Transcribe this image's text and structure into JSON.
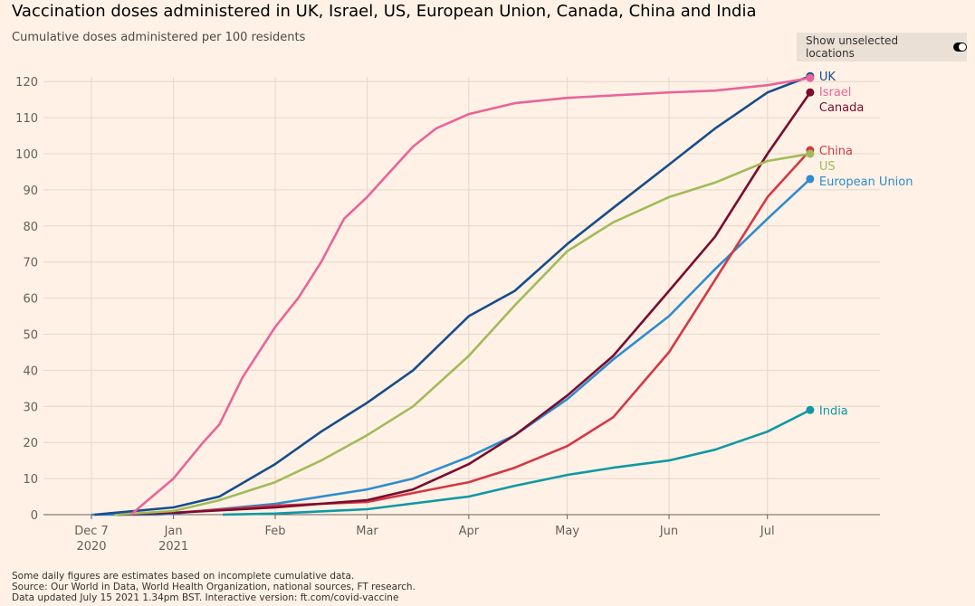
{
  "title": "Vaccination doses administered in UK, Israel, US, European Union, Canada, China and India",
  "subtitle": "Cumulative doses administered per 100 residents",
  "toggle": {
    "label": "Show unselected locations",
    "state": "off"
  },
  "footer": [
    "Some daily figures are estimates based on incomplete cumulative data.",
    "Source: Our World in Data, World Health Organization, national sources, FT research.",
    "Data updated July 15 2021 1.34pm BST. Interactive version: ft.com/covid-vaccine"
  ],
  "chart_data": {
    "type": "line",
    "title": "Vaccination doses administered in UK, Israel, US, European Union, Canada, China and India",
    "ylabel": "Cumulative doses administered per 100 residents",
    "ylim": [
      0,
      120
    ],
    "yticks": [
      0,
      10,
      20,
      30,
      40,
      50,
      60,
      70,
      80,
      90,
      100,
      110,
      120
    ],
    "xlim": [
      "2020-12-07",
      "2021-07-31"
    ],
    "xticks": [
      {
        "date": "2020-12-07",
        "label": "Dec 7",
        "label2": "2020"
      },
      {
        "date": "2021-01-01",
        "label": "Jan",
        "label2": "2021"
      },
      {
        "date": "2021-02-01",
        "label": "Feb"
      },
      {
        "date": "2021-03-01",
        "label": "Mar"
      },
      {
        "date": "2021-04-01",
        "label": "Apr"
      },
      {
        "date": "2021-05-01",
        "label": "May"
      },
      {
        "date": "2021-06-01",
        "label": "Jun"
      },
      {
        "date": "2021-07-01",
        "label": "Jul"
      }
    ],
    "grid": true,
    "legend": "end-of-line labels",
    "series": [
      {
        "name": "India",
        "color": "#0f99a3",
        "points": [
          [
            "2021-01-16",
            0
          ],
          [
            "2021-02-01",
            0.3
          ],
          [
            "2021-03-01",
            1.5
          ],
          [
            "2021-04-01",
            5
          ],
          [
            "2021-04-15",
            8
          ],
          [
            "2021-05-01",
            11
          ],
          [
            "2021-05-15",
            13
          ],
          [
            "2021-06-01",
            15
          ],
          [
            "2021-06-15",
            18
          ],
          [
            "2021-07-01",
            23
          ],
          [
            "2021-07-14",
            29
          ]
        ]
      },
      {
        "name": "European Union",
        "color": "#2e8ccf",
        "points": [
          [
            "2020-12-07",
            0
          ],
          [
            "2020-12-27",
            0
          ],
          [
            "2021-01-01",
            0.3
          ],
          [
            "2021-02-01",
            3
          ],
          [
            "2021-03-01",
            7
          ],
          [
            "2021-03-15",
            10
          ],
          [
            "2021-04-01",
            16
          ],
          [
            "2021-04-15",
            22
          ],
          [
            "2021-05-01",
            32
          ],
          [
            "2021-05-15",
            43
          ],
          [
            "2021-06-01",
            55
          ],
          [
            "2021-06-15",
            68
          ],
          [
            "2021-07-01",
            82
          ],
          [
            "2021-07-14",
            93
          ]
        ]
      },
      {
        "name": "China",
        "color": "#d43846",
        "points": [
          [
            "2020-12-15",
            0
          ],
          [
            "2021-01-01",
            0.5
          ],
          [
            "2021-02-01",
            2.5
          ],
          [
            "2021-03-01",
            3.5
          ],
          [
            "2021-04-01",
            9
          ],
          [
            "2021-04-15",
            13
          ],
          [
            "2021-05-01",
            19
          ],
          [
            "2021-05-15",
            27
          ],
          [
            "2021-06-01",
            45
          ],
          [
            "2021-06-15",
            65
          ],
          [
            "2021-07-01",
            88
          ],
          [
            "2021-07-14",
            101
          ]
        ]
      },
      {
        "name": "Canada",
        "color": "#7a0c2e",
        "points": [
          [
            "2020-12-15",
            0
          ],
          [
            "2021-01-01",
            0.5
          ],
          [
            "2021-02-01",
            2
          ],
          [
            "2021-03-01",
            4
          ],
          [
            "2021-03-15",
            7
          ],
          [
            "2021-04-01",
            14
          ],
          [
            "2021-04-15",
            22
          ],
          [
            "2021-05-01",
            33
          ],
          [
            "2021-05-15",
            44
          ],
          [
            "2021-06-01",
            62
          ],
          [
            "2021-06-15",
            77
          ],
          [
            "2021-07-01",
            100
          ],
          [
            "2021-07-14",
            117
          ]
        ]
      },
      {
        "name": "US",
        "color": "#a1bb5a",
        "points": [
          [
            "2020-12-14",
            0
          ],
          [
            "2021-01-01",
            1
          ],
          [
            "2021-01-15",
            4
          ],
          [
            "2021-02-01",
            9
          ],
          [
            "2021-02-15",
            15
          ],
          [
            "2021-03-01",
            22
          ],
          [
            "2021-03-15",
            30
          ],
          [
            "2021-04-01",
            44
          ],
          [
            "2021-04-15",
            58
          ],
          [
            "2021-05-01",
            73
          ],
          [
            "2021-05-15",
            81
          ],
          [
            "2021-06-01",
            88
          ],
          [
            "2021-06-15",
            92
          ],
          [
            "2021-07-01",
            98
          ],
          [
            "2021-07-14",
            100
          ]
        ]
      },
      {
        "name": "UK",
        "color": "#174d8c",
        "points": [
          [
            "2020-12-08",
            0
          ],
          [
            "2021-01-01",
            2
          ],
          [
            "2021-01-15",
            5
          ],
          [
            "2021-02-01",
            14
          ],
          [
            "2021-02-15",
            23
          ],
          [
            "2021-03-01",
            31
          ],
          [
            "2021-03-15",
            40
          ],
          [
            "2021-04-01",
            55
          ],
          [
            "2021-04-15",
            62
          ],
          [
            "2021-05-01",
            75
          ],
          [
            "2021-05-15",
            85
          ],
          [
            "2021-06-01",
            97
          ],
          [
            "2021-06-15",
            107
          ],
          [
            "2021-07-01",
            117
          ],
          [
            "2021-07-14",
            121.5
          ]
        ]
      },
      {
        "name": "Israel",
        "color": "#e9649a",
        "points": [
          [
            "2020-12-19",
            0
          ],
          [
            "2021-01-01",
            10
          ],
          [
            "2021-01-10",
            20
          ],
          [
            "2021-01-15",
            25
          ],
          [
            "2021-01-22",
            38
          ],
          [
            "2021-02-01",
            52
          ],
          [
            "2021-02-08",
            60
          ],
          [
            "2021-02-15",
            70
          ],
          [
            "2021-02-22",
            82
          ],
          [
            "2021-03-01",
            88
          ],
          [
            "2021-03-08",
            95
          ],
          [
            "2021-03-15",
            102
          ],
          [
            "2021-03-22",
            107
          ],
          [
            "2021-04-01",
            111
          ],
          [
            "2021-04-15",
            114
          ],
          [
            "2021-05-01",
            115.5
          ],
          [
            "2021-06-01",
            117
          ],
          [
            "2021-06-15",
            117.5
          ],
          [
            "2021-07-01",
            119
          ],
          [
            "2021-07-14",
            121
          ]
        ]
      }
    ]
  }
}
